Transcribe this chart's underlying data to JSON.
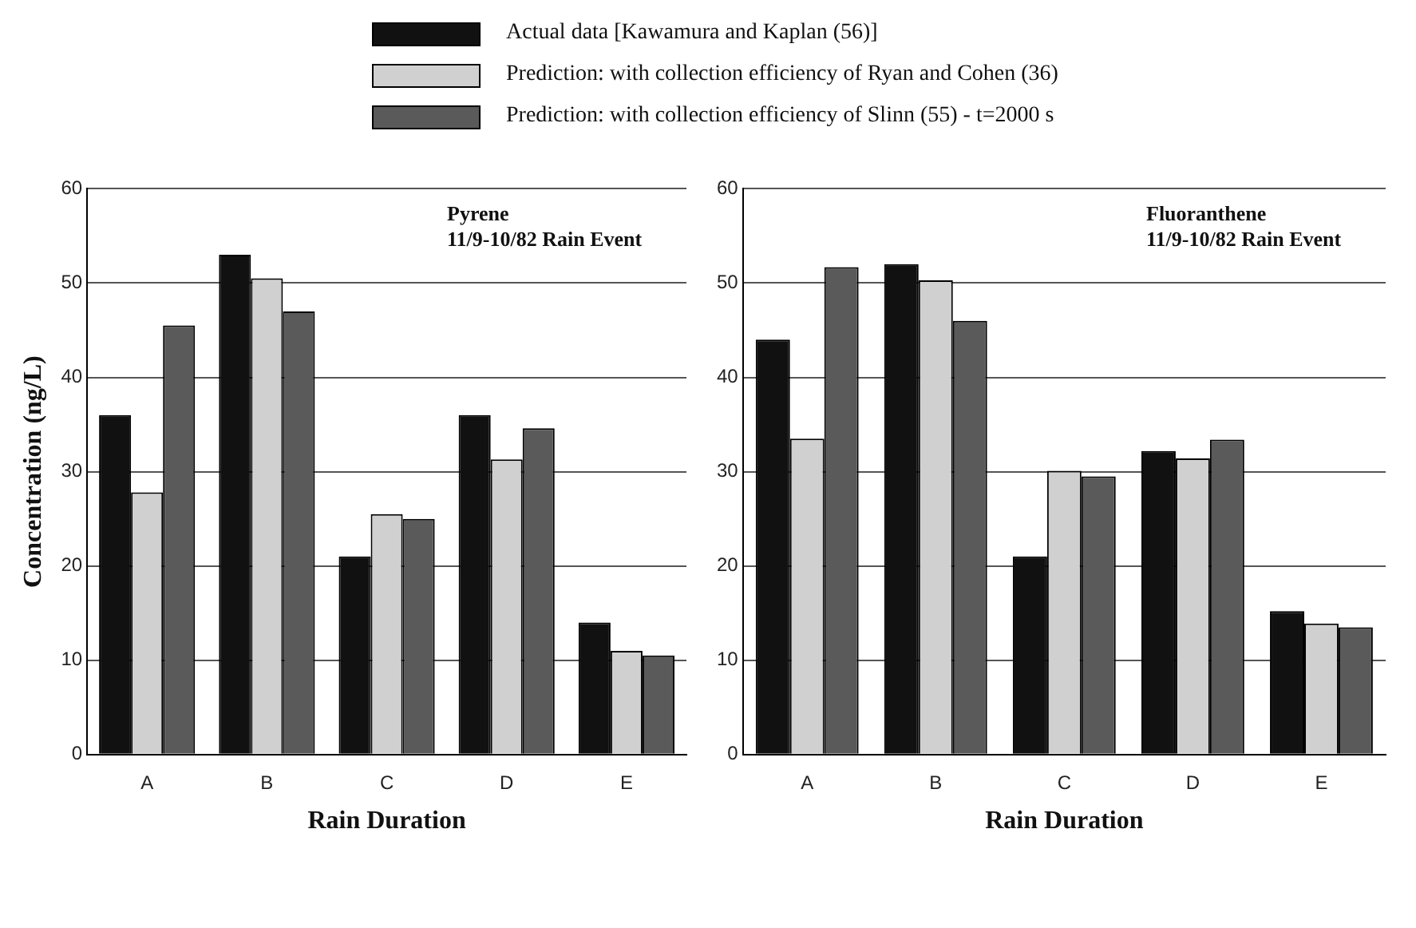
{
  "chart_data": [
    {
      "type": "bar",
      "categories": [
        "A",
        "B",
        "C",
        "D",
        "E"
      ],
      "xlabel": "Rain Duration",
      "ylabel": "Concentration (ng/L)",
      "annotations": [
        "Pyrene",
        "11/9-10/82 Rain Event"
      ],
      "ylim": [
        0,
        60
      ],
      "yticks": [
        0,
        10,
        20,
        30,
        40,
        50,
        60
      ],
      "grid": "y",
      "legend": "top",
      "series": [
        {
          "name": "Actual data [Kawamura and Kaplan (56)]",
          "color": "#111111",
          "values": [
            36,
            53,
            21,
            36,
            14
          ]
        },
        {
          "name": "Prediction: with collection efficiency of Ryan and Cohen (36)",
          "color": "#d0d0d0",
          "values": [
            27.8,
            50.5,
            25.5,
            31.3,
            11
          ]
        },
        {
          "name": "Prediction: with collection efficiency of  Slinn (55) - t=2000 s",
          "color": "#5a5a5a",
          "values": [
            45.5,
            47,
            25,
            34.6,
            10.5
          ]
        }
      ]
    },
    {
      "type": "bar",
      "categories": [
        "A",
        "B",
        "C",
        "D",
        "E"
      ],
      "xlabel": "Rain Duration",
      "annotations": [
        "Fluoranthene",
        "11/9-10/82 Rain Event"
      ],
      "ylim": [
        0,
        60
      ],
      "yticks": [
        0,
        10,
        20,
        30,
        40,
        50,
        60
      ],
      "grid": "y",
      "series": [
        {
          "color": "#111111",
          "values": [
            44,
            52,
            21,
            32.2,
            15.2
          ]
        },
        {
          "color": "#d0d0d0",
          "values": [
            33.5,
            50.3,
            30.1,
            31.4,
            13.9
          ]
        },
        {
          "color": "#5a5a5a",
          "values": [
            51.7,
            46,
            29.5,
            33.4,
            13.5
          ]
        }
      ]
    }
  ]
}
